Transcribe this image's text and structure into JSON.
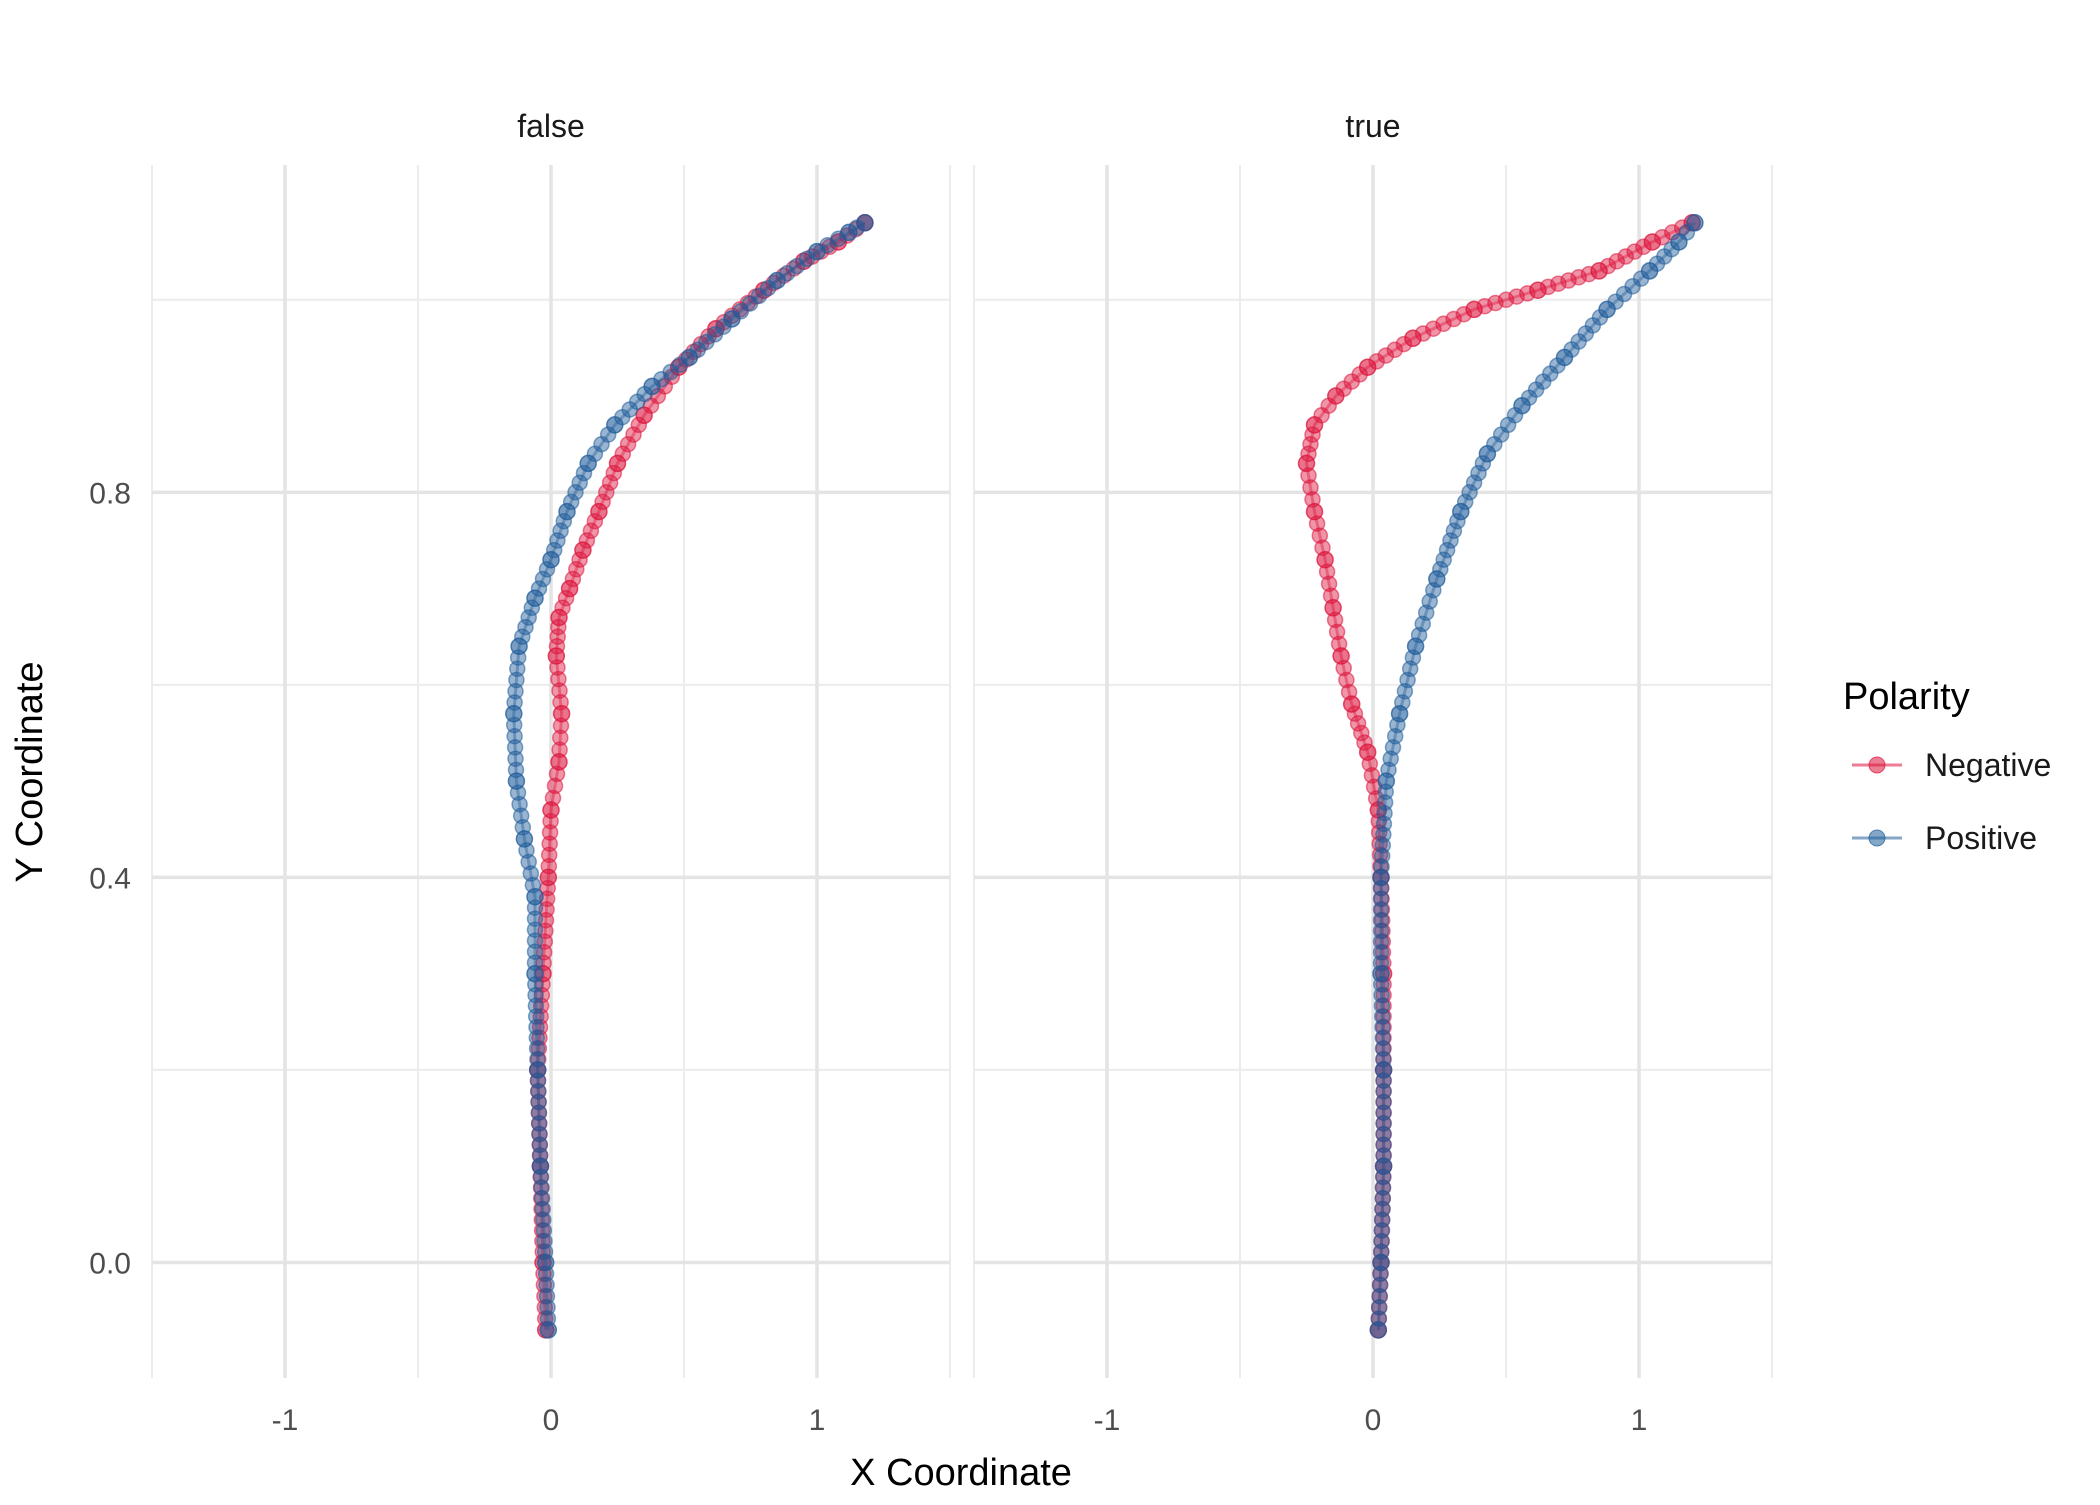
{
  "chart_data": {
    "type": "scatter",
    "facet_labels": [
      "false",
      "true"
    ],
    "xlabel": "X Coordinate",
    "ylabel": "Y Coordinate",
    "xlim": [
      -1.5,
      1.5
    ],
    "ylim": [
      -0.12,
      1.14
    ],
    "x_ticks": [
      -1,
      0,
      1
    ],
    "x_tick_labels": [
      "-1",
      "0",
      "1"
    ],
    "y_ticks": [
      0.0,
      0.4,
      0.8
    ],
    "y_tick_labels": [
      "0.0",
      "0.4",
      "0.8"
    ],
    "grid": true,
    "legend": {
      "title": "Polarity",
      "position": "right",
      "entries": [
        "Negative",
        "Positive"
      ]
    },
    "colors": {
      "Negative": "#dc143c",
      "Positive": "#1f5c99"
    },
    "panels": [
      {
        "facet": "false",
        "series": [
          {
            "name": "Negative",
            "points": [
              [
                -0.02,
                -0.07
              ],
              [
                -0.03,
                0.0
              ],
              [
                -0.04,
                0.1
              ],
              [
                -0.05,
                0.2
              ],
              [
                -0.03,
                0.3
              ],
              [
                -0.01,
                0.4
              ],
              [
                0.0,
                0.47
              ],
              [
                0.03,
                0.52
              ],
              [
                0.04,
                0.57
              ],
              [
                0.02,
                0.63
              ],
              [
                0.03,
                0.67
              ],
              [
                0.07,
                0.7
              ],
              [
                0.12,
                0.74
              ],
              [
                0.18,
                0.78
              ],
              [
                0.25,
                0.83
              ],
              [
                0.35,
                0.88
              ],
              [
                0.48,
                0.93
              ],
              [
                0.62,
                0.97
              ],
              [
                0.8,
                1.01
              ],
              [
                0.95,
                1.04
              ],
              [
                1.08,
                1.06
              ],
              [
                1.18,
                1.08
              ]
            ]
          },
          {
            "name": "Positive",
            "points": [
              [
                -0.01,
                -0.07
              ],
              [
                -0.02,
                0.0
              ],
              [
                -0.04,
                0.1
              ],
              [
                -0.05,
                0.2
              ],
              [
                -0.06,
                0.3
              ],
              [
                -0.06,
                0.38
              ],
              [
                -0.1,
                0.44
              ],
              [
                -0.13,
                0.5
              ],
              [
                -0.14,
                0.57
              ],
              [
                -0.12,
                0.64
              ],
              [
                -0.06,
                0.69
              ],
              [
                0.0,
                0.73
              ],
              [
                0.06,
                0.78
              ],
              [
                0.14,
                0.83
              ],
              [
                0.24,
                0.87
              ],
              [
                0.38,
                0.91
              ],
              [
                0.52,
                0.94
              ],
              [
                0.68,
                0.98
              ],
              [
                0.85,
                1.02
              ],
              [
                1.0,
                1.05
              ],
              [
                1.12,
                1.07
              ],
              [
                1.18,
                1.08
              ]
            ]
          }
        ]
      },
      {
        "facet": "true",
        "series": [
          {
            "name": "Negative",
            "points": [
              [
                0.02,
                -0.07
              ],
              [
                0.03,
                0.0
              ],
              [
                0.04,
                0.1
              ],
              [
                0.04,
                0.2
              ],
              [
                0.04,
                0.3
              ],
              [
                0.03,
                0.4
              ],
              [
                0.02,
                0.47
              ],
              [
                -0.02,
                0.53
              ],
              [
                -0.08,
                0.58
              ],
              [
                -0.12,
                0.63
              ],
              [
                -0.15,
                0.68
              ],
              [
                -0.18,
                0.73
              ],
              [
                -0.22,
                0.78
              ],
              [
                -0.25,
                0.83
              ],
              [
                -0.22,
                0.87
              ],
              [
                -0.14,
                0.9
              ],
              [
                -0.02,
                0.93
              ],
              [
                0.15,
                0.96
              ],
              [
                0.38,
                0.99
              ],
              [
                0.62,
                1.01
              ],
              [
                0.85,
                1.03
              ],
              [
                1.05,
                1.06
              ],
              [
                1.2,
                1.08
              ]
            ]
          },
          {
            "name": "Positive",
            "points": [
              [
                0.02,
                -0.07
              ],
              [
                0.03,
                0.0
              ],
              [
                0.04,
                0.1
              ],
              [
                0.04,
                0.2
              ],
              [
                0.03,
                0.3
              ],
              [
                0.03,
                0.4
              ],
              [
                0.05,
                0.5
              ],
              [
                0.1,
                0.57
              ],
              [
                0.16,
                0.64
              ],
              [
                0.24,
                0.71
              ],
              [
                0.33,
                0.78
              ],
              [
                0.43,
                0.84
              ],
              [
                0.56,
                0.89
              ],
              [
                0.72,
                0.94
              ],
              [
                0.88,
                0.99
              ],
              [
                1.04,
                1.03
              ],
              [
                1.15,
                1.06
              ],
              [
                1.21,
                1.08
              ]
            ]
          }
        ]
      }
    ]
  }
}
